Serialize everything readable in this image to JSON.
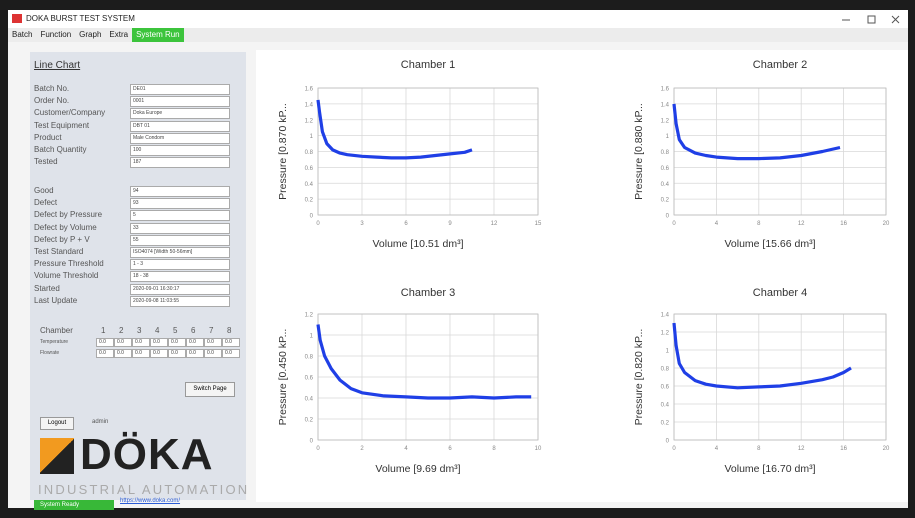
{
  "window": {
    "title": "DOKA BURST TEST SYSTEM"
  },
  "menu": [
    "Batch",
    "Function",
    "Graph",
    "Extra",
    "System Run"
  ],
  "panel": {
    "heading": "Line Chart",
    "fields": [
      {
        "label": "Batch No.",
        "value": "DE01"
      },
      {
        "label": "Order No.",
        "value": "0001"
      },
      {
        "label": "Customer/Company",
        "value": "Doka Europe"
      },
      {
        "label": "Test Equipment",
        "value": "DBT 01"
      },
      {
        "label": "Product",
        "value": "Male Condom"
      },
      {
        "label": "Batch Quantity",
        "value": "100"
      },
      {
        "label": "Tested",
        "value": "187"
      }
    ],
    "stats": [
      {
        "label": "Good",
        "value": "94"
      },
      {
        "label": "Defect",
        "value": "93"
      },
      {
        "label": "Defect by Pressure",
        "value": "5"
      },
      {
        "label": "Defect by Volume",
        "value": "33"
      },
      {
        "label": "Defect by P + V",
        "value": "55"
      },
      {
        "label": "Test Standard",
        "value": "ISO4074 [Width 50-56mm]"
      },
      {
        "label": "Pressure Threshold",
        "value": "1 - 3"
      },
      {
        "label": "Volume Threshold",
        "value": "18 - 38"
      },
      {
        "label": "Started",
        "value": "2020-09-01 16:30:17"
      },
      {
        "label": "Last Update",
        "value": "2020-09-08 11:03:55"
      }
    ],
    "chamber_table": {
      "header": "Chamber",
      "chambers": [
        "1",
        "2",
        "3",
        "4",
        "5",
        "6",
        "7",
        "8"
      ],
      "rows": [
        {
          "label": "Temperature",
          "values": [
            "0.0",
            "0.0",
            "0.0",
            "0.0",
            "0.0",
            "0.0",
            "0.0",
            "0.0"
          ]
        },
        {
          "label": "Flowrate",
          "values": [
            "0.0",
            "0.0",
            "0.0",
            "0.0",
            "0.0",
            "0.0",
            "0.0",
            "0.0"
          ]
        }
      ]
    },
    "switch_button": "Switch Page",
    "logout_button": "Logout",
    "user": "admin"
  },
  "logo": {
    "brand": "DÖKA",
    "tagline": "INDUSTRIAL AUTOMATION",
    "url": "https://www.doka.com/"
  },
  "status": "System Ready",
  "chart_data": [
    {
      "type": "line",
      "title": "Chamber 1",
      "xlabel": "Volume [10.51 dm³]",
      "ylabel": "Pressure [0.870 kP...",
      "x": [
        0,
        0.1,
        0.3,
        0.6,
        1,
        1.5,
        2,
        3,
        4,
        5,
        6,
        7,
        8,
        9,
        10,
        10.5
      ],
      "series": [
        {
          "color": "#1f3fe6",
          "values": [
            1.45,
            1.3,
            1.05,
            0.9,
            0.82,
            0.78,
            0.76,
            0.74,
            0.73,
            0.72,
            0.72,
            0.73,
            0.75,
            0.77,
            0.79,
            0.82
          ]
        }
      ],
      "xlim": [
        0,
        15
      ],
      "xticks": [
        0,
        3,
        6,
        9,
        12,
        15
      ],
      "ylim": [
        0,
        1.6
      ],
      "yticks": [
        0,
        0.2,
        0.4,
        0.6,
        0.8,
        1,
        1.2,
        1.4,
        1.6
      ],
      "grid": true
    },
    {
      "type": "line",
      "title": "Chamber 2",
      "xlabel": "Volume [15.66 dm³]",
      "ylabel": "Pressure [0.880 kP...",
      "x": [
        0,
        0.2,
        0.5,
        1,
        2,
        3,
        4,
        6,
        8,
        10,
        12,
        14,
        15.66
      ],
      "series": [
        {
          "color": "#1f3fe6",
          "values": [
            1.4,
            1.15,
            0.95,
            0.85,
            0.78,
            0.75,
            0.73,
            0.71,
            0.71,
            0.72,
            0.75,
            0.8,
            0.85
          ]
        }
      ],
      "xlim": [
        0,
        20
      ],
      "xticks": [
        0,
        4,
        8,
        12,
        16,
        20
      ],
      "ylim": [
        0,
        1.6
      ],
      "yticks": [
        0,
        0.2,
        0.4,
        0.6,
        0.8,
        1,
        1.2,
        1.4,
        1.6
      ],
      "grid": true
    },
    {
      "type": "line",
      "title": "Chamber 3",
      "xlabel": "Volume [9.69 dm³]",
      "ylabel": "Pressure [0.450 kP...",
      "x": [
        0,
        0.1,
        0.3,
        0.6,
        1,
        1.5,
        2,
        3,
        4,
        5,
        6,
        7,
        8,
        9,
        9.69
      ],
      "series": [
        {
          "color": "#1f3fe6",
          "values": [
            1.1,
            0.95,
            0.8,
            0.68,
            0.57,
            0.49,
            0.45,
            0.42,
            0.41,
            0.4,
            0.4,
            0.41,
            0.4,
            0.41,
            0.41
          ]
        }
      ],
      "xlim": [
        0,
        10
      ],
      "xticks": [
        0,
        2,
        4,
        6,
        8,
        10
      ],
      "ylim": [
        0,
        1.2
      ],
      "yticks": [
        0,
        0.2,
        0.4,
        0.6,
        0.8,
        1,
        1.2
      ],
      "grid": true
    },
    {
      "type": "line",
      "title": "Chamber 4",
      "xlabel": "Volume [16.70 dm³]",
      "ylabel": "Pressure [0.820 kP...",
      "x": [
        0,
        0.2,
        0.5,
        1,
        2,
        3,
        4,
        6,
        8,
        10,
        12,
        14,
        15,
        16,
        16.7
      ],
      "series": [
        {
          "color": "#1f3fe6",
          "values": [
            1.3,
            1.05,
            0.85,
            0.75,
            0.66,
            0.62,
            0.6,
            0.58,
            0.59,
            0.6,
            0.63,
            0.67,
            0.7,
            0.75,
            0.8
          ]
        }
      ],
      "xlim": [
        0,
        20
      ],
      "xticks": [
        0,
        4,
        8,
        12,
        16,
        20
      ],
      "ylim": [
        0,
        1.4
      ],
      "yticks": [
        0,
        0.2,
        0.4,
        0.6,
        0.8,
        1,
        1.2,
        1.4
      ],
      "grid": true
    }
  ]
}
